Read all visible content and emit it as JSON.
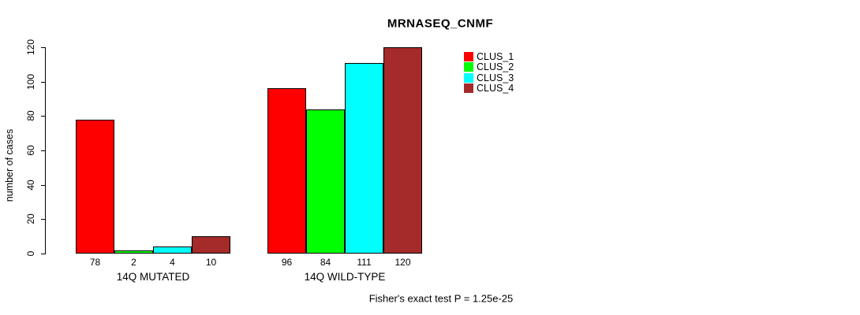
{
  "chart_data": {
    "type": "bar",
    "title": "MRNASEQ_CNMF",
    "xlabel": "",
    "ylabel": "number of cases",
    "ylim": [
      0,
      120
    ],
    "yticks": [
      0,
      20,
      40,
      60,
      80,
      100,
      120
    ],
    "grid": false,
    "legend_position": "right",
    "categories": [
      "14Q MUTATED",
      "14Q WILD-TYPE"
    ],
    "series": [
      {
        "name": "CLUS_1",
        "color": "#ff0000",
        "values": [
          78,
          96
        ]
      },
      {
        "name": "CLUS_2",
        "color": "#00ff00",
        "values": [
          2,
          84
        ]
      },
      {
        "name": "CLUS_3",
        "color": "#00ffff",
        "values": [
          4,
          111
        ]
      },
      {
        "name": "CLUS_4",
        "color": "#a52a2a",
        "values": [
          10,
          120
        ]
      }
    ],
    "groups": [
      {
        "label": "14Q MUTATED",
        "values": [
          78,
          2,
          4,
          10
        ],
        "bar_labels": [
          "78",
          "2",
          "4",
          "10"
        ]
      },
      {
        "label": "14Q WILD-TYPE",
        "values": [
          96,
          84,
          111,
          120
        ],
        "bar_labels": [
          "96",
          "84",
          "111",
          "120"
        ]
      }
    ],
    "series_colors": [
      "#ff0000",
      "#00ff00",
      "#00ffff",
      "#a52a2a"
    ],
    "legend": [
      {
        "label": "CLUS_1",
        "color": "#ff0000"
      },
      {
        "label": "CLUS_2",
        "color": "#00ff00"
      },
      {
        "label": "CLUS_3",
        "color": "#00ffff"
      },
      {
        "label": "CLUS_4",
        "color": "#a52a2a"
      }
    ],
    "annotation": "Fisher's exact test P = 1.25e-25"
  }
}
